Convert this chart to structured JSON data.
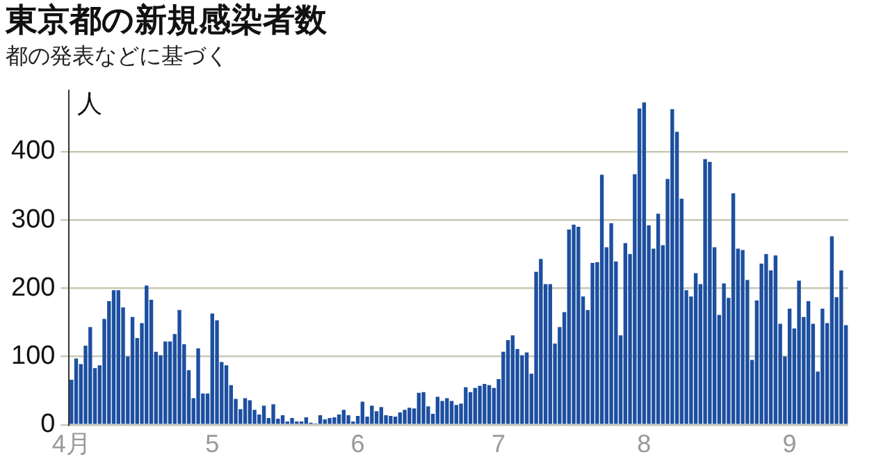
{
  "chart_data": {
    "type": "bar",
    "title": "東京都の新規感染者数",
    "subtitle": "都の発表などに基づく",
    "ylabel": "人",
    "categories": [
      "4月",
      null,
      null,
      null,
      null,
      null,
      null,
      null,
      null,
      null,
      null,
      null,
      null,
      null,
      null,
      null,
      null,
      null,
      null,
      null,
      null,
      null,
      null,
      null,
      null,
      null,
      null,
      null,
      null,
      null,
      "5",
      null,
      null,
      null,
      null,
      null,
      null,
      null,
      null,
      null,
      null,
      null,
      null,
      null,
      null,
      null,
      null,
      null,
      null,
      null,
      null,
      null,
      null,
      null,
      null,
      null,
      null,
      null,
      null,
      null,
      null,
      "6",
      null,
      null,
      null,
      null,
      null,
      null,
      null,
      null,
      null,
      null,
      null,
      null,
      null,
      null,
      null,
      null,
      null,
      null,
      null,
      null,
      null,
      null,
      null,
      null,
      null,
      null,
      null,
      null,
      null,
      "7",
      null,
      null,
      null,
      null,
      null,
      null,
      null,
      null,
      null,
      null,
      null,
      null,
      null,
      null,
      null,
      null,
      null,
      null,
      null,
      null,
      null,
      null,
      null,
      null,
      null,
      null,
      null,
      null,
      null,
      null,
      "8",
      null,
      null,
      null,
      null,
      null,
      null,
      null,
      null,
      null,
      null,
      null,
      null,
      null,
      null,
      null,
      null,
      null,
      null,
      null,
      null,
      null,
      null,
      null,
      null,
      null,
      null,
      null,
      null,
      null,
      null,
      "9",
      null,
      null,
      null,
      null,
      null,
      null,
      null,
      null,
      null,
      null,
      null,
      null
    ],
    "values": [
      66,
      97,
      89,
      116,
      143,
      83,
      87,
      155,
      181,
      197,
      197,
      172,
      100,
      158,
      127,
      149,
      204,
      183,
      107,
      102,
      122,
      122,
      133,
      168,
      118,
      80,
      39,
      112,
      46,
      46,
      163,
      153,
      92,
      87,
      58,
      38,
      23,
      39,
      36,
      22,
      15,
      28,
      10,
      30,
      9,
      14,
      5,
      10,
      5,
      5,
      11,
      3,
      2,
      14,
      8,
      10,
      11,
      15,
      22,
      14,
      5,
      13,
      34,
      12,
      28,
      20,
      26,
      14,
      13,
      12,
      18,
      22,
      25,
      24,
      47,
      48,
      27,
      16,
      41,
      35,
      39,
      35,
      29,
      31,
      55,
      48,
      54,
      57,
      60,
      58,
      54,
      67,
      107,
      124,
      131,
      111,
      102,
      106,
      75,
      224,
      243,
      206,
      206,
      119,
      143,
      165,
      286,
      293,
      290,
      188,
      168,
      237,
      238,
      366,
      260,
      295,
      239,
      131,
      266,
      250,
      367,
      463,
      472,
      292,
      258,
      309,
      263,
      360,
      462,
      429,
      331,
      197,
      188,
      222,
      206,
      389,
      385,
      260,
      161,
      207,
      186,
      339,
      258,
      256,
      212,
      95,
      182,
      236,
      250,
      226,
      248,
      148,
      100,
      170,
      141,
      211,
      158,
      181,
      148,
      78,
      170,
      149,
      276,
      187,
      226,
      146
    ],
    "color": "#1d4fa0",
    "ylim": [
      0,
      490
    ],
    "yticks": [
      0,
      100,
      200,
      300,
      400
    ],
    "grid": "y"
  }
}
